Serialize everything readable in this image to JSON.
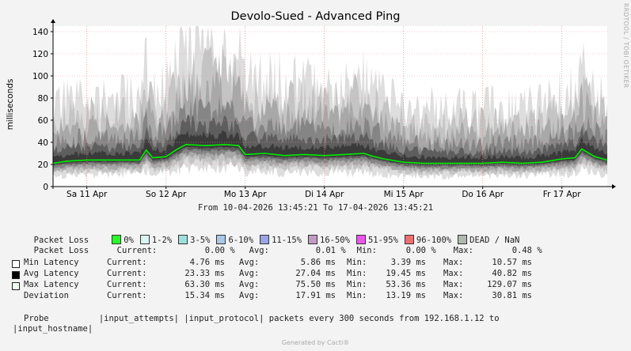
{
  "chart_data": {
    "type": "area",
    "title": "Devolo-Sued - Advanced Ping",
    "ylabel": "milliseconds",
    "ylim": [
      0,
      145
    ],
    "yticks": [
      0,
      20,
      40,
      60,
      80,
      100,
      120,
      140
    ],
    "xlim": [
      "2026-04-10T13:45",
      "2026-04-17T13:45"
    ],
    "xticks": [
      {
        "label": "Sa 11 Apr",
        "t": "2026-04-11T00:00"
      },
      {
        "label": "So 12 Apr",
        "t": "2026-04-12T00:00"
      },
      {
        "label": "Mo 13 Apr",
        "t": "2026-04-13T00:00"
      },
      {
        "label": "Di 14 Apr",
        "t": "2026-04-14T00:00"
      },
      {
        "label": "Mi 15 Apr",
        "t": "2026-04-15T00:00"
      },
      {
        "label": "Do 16 Apr",
        "t": "2026-04-16T00:00"
      },
      {
        "label": "Fr 17 Apr",
        "t": "2026-04-17T00:00"
      }
    ],
    "grid": true,
    "series": [
      {
        "name": "Avg Latency",
        "color": "#00ee00",
        "x": [
          "2026-04-10T13:45",
          "2026-04-10T18:00",
          "2026-04-11T00:00",
          "2026-04-11T06:00",
          "2026-04-11T12:00",
          "2026-04-11T16:00",
          "2026-04-11T18:00",
          "2026-04-11T20:00",
          "2026-04-12T00:00",
          "2026-04-12T03:00",
          "2026-04-12T06:00",
          "2026-04-12T12:00",
          "2026-04-12T18:00",
          "2026-04-12T22:00",
          "2026-04-13T00:00",
          "2026-04-13T06:00",
          "2026-04-13T12:00",
          "2026-04-13T18:00",
          "2026-04-14T00:00",
          "2026-04-14T06:00",
          "2026-04-14T12:00",
          "2026-04-14T14:00",
          "2026-04-14T18:00",
          "2026-04-15T00:00",
          "2026-04-15T06:00",
          "2026-04-15T12:00",
          "2026-04-15T18:00",
          "2026-04-16T00:00",
          "2026-04-16T06:00",
          "2026-04-16T12:00",
          "2026-04-16T18:00",
          "2026-04-16T22:00",
          "2026-04-17T00:00",
          "2026-04-17T04:00",
          "2026-04-17T06:00",
          "2026-04-17T10:00",
          "2026-04-17T13:45"
        ],
        "values": [
          21,
          23,
          24,
          24,
          24,
          24,
          33,
          26,
          27,
          33,
          38,
          37,
          38,
          37,
          29,
          30,
          28,
          29,
          28,
          29,
          30,
          28,
          25,
          22,
          21,
          21,
          21,
          21,
          22,
          21,
          22,
          24,
          25,
          26,
          34,
          27,
          24
        ]
      }
    ],
    "bands_note": "",
    "legend_loss": [
      {
        "label": "0%",
        "color": "#26ff26"
      },
      {
        "label": "1-2%",
        "color": "#d8f7f2"
      },
      {
        "label": "3-5%",
        "color": "#9ee0dc"
      },
      {
        "label": "6-10%",
        "color": "#a8c8e8"
      },
      {
        "label": "11-15%",
        "color": "#9aa5e6"
      },
      {
        "label": "16-50%",
        "color": "#c39ac6"
      },
      {
        "label": "51-95%",
        "color": "#ee55ee"
      },
      {
        "label": "96-100%",
        "color": "#ee7070"
      },
      {
        "label": "DEAD / NaN",
        "color": "#b0b8b0"
      }
    ]
  },
  "title": "Devolo-Sued - Advanced Ping",
  "ylabel": "milliseconds",
  "side_text": "RRDTOOL / TOBI OETIKER",
  "period": "From 10-04-2026 13:45:21 To 17-04-2026 13:45:21",
  "packet_loss_header": "Packet Loss",
  "packet_loss_stats": {
    "label": "Packet Loss",
    "current_label": "Current:",
    "current": "0.00 %",
    "avg_label": "Avg:",
    "avg": "0.01 %",
    "min_label": "Min:",
    "min": "0.00 %",
    "max_label": "Max:",
    "max": "0.48 %"
  },
  "stats": [
    {
      "label": "Min Latency",
      "swatch": "#ffffff",
      "current": "4.76 ms",
      "avg": "5.86 ms",
      "min": "3.39 ms",
      "max": "10.57 ms"
    },
    {
      "label": "Avg Latency",
      "swatch": "#000000",
      "current": "23.33 ms",
      "avg": "27.04 ms",
      "min": "19.45 ms",
      "max": "40.82 ms"
    },
    {
      "label": "Max Latency",
      "swatch": "#f2fff2",
      "current": "63.30 ms",
      "avg": "75.50 ms",
      "min": "53.36 ms",
      "max": "129.07 ms"
    },
    {
      "label": "Deviation",
      "swatch": "",
      "current": "15.34 ms",
      "avg": "17.91 ms",
      "min": "13.19 ms",
      "max": "30.81 ms"
    }
  ],
  "stat_labels": {
    "current": "Current:",
    "avg": "Avg:",
    "min": "Min:",
    "max": "Max:"
  },
  "probe": {
    "line1": "Probe          |input_attempts| |input_protocol| packets every 300 seconds from 192.168.1.12 to",
    "line2": "|input_hostname|"
  },
  "footer": "Generated by Cacti®"
}
